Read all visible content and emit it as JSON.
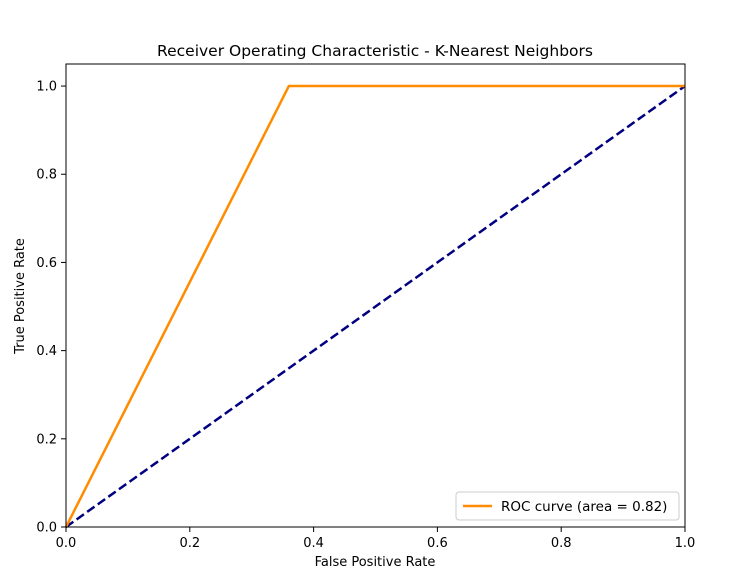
{
  "chart_data": {
    "type": "line",
    "title": "Receiver Operating Characteristic - K-Nearest Neighbors",
    "xlabel": "False Positive Rate",
    "ylabel": "True Positive Rate",
    "xlim": [
      0.0,
      1.0
    ],
    "ylim": [
      0.0,
      1.05
    ],
    "xticks": [
      "0.0",
      "0.2",
      "0.4",
      "0.6",
      "0.8",
      "1.0"
    ],
    "yticks": [
      "0.0",
      "0.2",
      "0.4",
      "0.6",
      "0.8",
      "1.0"
    ],
    "grid": false,
    "legend_position": "lower-right",
    "series": [
      {
        "name": "ROC curve (area = 0.82)",
        "color": "#ff8c00",
        "style": "solid",
        "x": [
          0.0,
          0.36,
          1.0
        ],
        "y": [
          0.0,
          1.0,
          1.0
        ]
      },
      {
        "color": "#000080",
        "style": "dashed",
        "x": [
          0.0,
          1.0
        ],
        "y": [
          0.0,
          1.0
        ]
      }
    ]
  }
}
